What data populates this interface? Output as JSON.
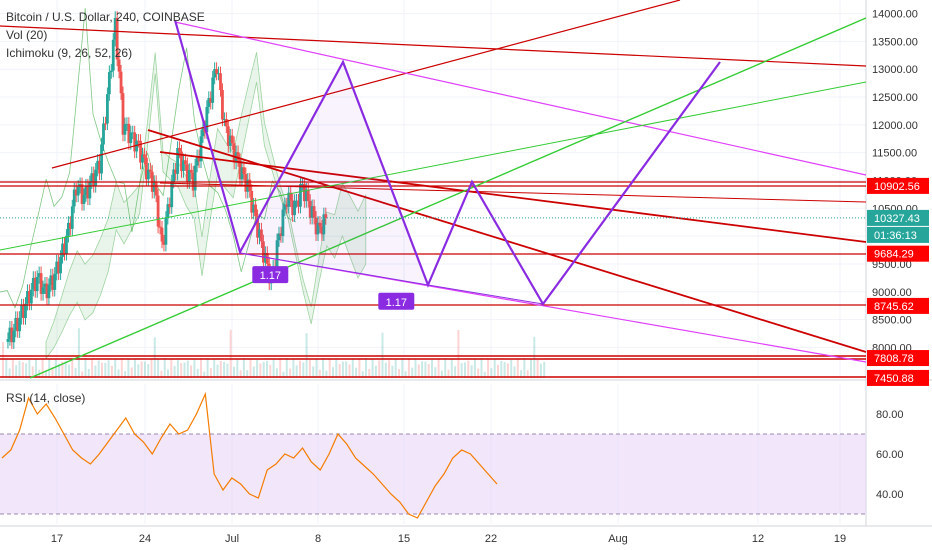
{
  "header": {
    "symbol": "Bitcoin / U.S. Dollar, 240, COINBASE",
    "vol": "Vol (20)",
    "ichimoku": "Ichimoku (9, 26, 52, 26)"
  },
  "rsi_panel": {
    "label": "RSI (14, close)"
  },
  "colors": {
    "up": "#26a69a",
    "down": "#ef5350",
    "pattern": "#8a2be2",
    "red_line": "#cc0000",
    "magenta_line": "#e040fb",
    "green_line": "#33cc33",
    "rsi": "#f57c00",
    "rsi_band": "#e8d5f7",
    "price_tag": "#26a69a",
    "level_tag": "#ff0000"
  },
  "chart_data": [
    {
      "type": "candlestick",
      "title": "Bitcoin / U.S. Dollar, 240, COINBASE",
      "x_ticks": [
        "17",
        "24",
        "Jul",
        "8",
        "15",
        "22",
        "Aug",
        "12",
        "19"
      ],
      "y_ticks": [
        8000,
        8500,
        9000,
        9500,
        10000,
        10500,
        11000,
        11500,
        12000,
        12500,
        13000,
        13500,
        14000
      ],
      "ylim": [
        7450,
        14100
      ],
      "grid": true,
      "ohlc_close_path": [
        {
          "d": 0,
          "c": 8100
        },
        {
          "d": 1,
          "c": 8300
        },
        {
          "d": 2,
          "c": 8600
        },
        {
          "d": 3,
          "c": 8950
        },
        {
          "d": 4,
          "c": 9250
        },
        {
          "d": 5,
          "c": 9000
        },
        {
          "d": 6,
          "c": 9200
        },
        {
          "d": 7,
          "c": 9600
        },
        {
          "d": 8,
          "c": 10100
        },
        {
          "d": 9,
          "c": 10900
        },
        {
          "d": 10,
          "c": 10700
        },
        {
          "d": 11,
          "c": 11000
        },
        {
          "d": 12,
          "c": 11300
        },
        {
          "d": 13,
          "c": 12500
        },
        {
          "d": 14,
          "c": 13800
        },
        {
          "d": 15,
          "c": 12000
        },
        {
          "d": 16,
          "c": 11800
        },
        {
          "d": 17,
          "c": 11600
        },
        {
          "d": 18,
          "c": 11200
        },
        {
          "d": 19,
          "c": 10900
        },
        {
          "d": 20,
          "c": 9800
        },
        {
          "d": 21,
          "c": 10700
        },
        {
          "d": 22,
          "c": 11500
        },
        {
          "d": 23,
          "c": 11200
        },
        {
          "d": 24,
          "c": 11000
        },
        {
          "d": 25,
          "c": 11700
        },
        {
          "d": 26,
          "c": 12400
        },
        {
          "d": 27,
          "c": 13100
        },
        {
          "d": 28,
          "c": 12000
        },
        {
          "d": 29,
          "c": 11600
        },
        {
          "d": 30,
          "c": 11200
        },
        {
          "d": 31,
          "c": 10900
        },
        {
          "d": 32,
          "c": 10300
        },
        {
          "d": 33,
          "c": 9700
        },
        {
          "d": 34,
          "c": 9200
        },
        {
          "d": 35,
          "c": 10000
        },
        {
          "d": 36,
          "c": 10700
        },
        {
          "d": 37,
          "c": 10500
        },
        {
          "d": 38,
          "c": 10900
        },
        {
          "d": 39,
          "c": 10500
        },
        {
          "d": 40,
          "c": 10100
        },
        {
          "d": 41,
          "c": 10300
        }
      ],
      "price_tags": [
        {
          "label": "10902.56",
          "value": 10902.56,
          "kind": "level"
        },
        {
          "label": "10327.43",
          "value": 10327.43,
          "kind": "price"
        },
        {
          "label": "01:36:13",
          "value": 10180,
          "kind": "countdown"
        },
        {
          "label": "9684.29",
          "value": 9684.29,
          "kind": "level"
        },
        {
          "label": "8745.62",
          "value": 8745.62,
          "kind": "level"
        },
        {
          "label": "7808.78",
          "value": 7808.78,
          "kind": "level"
        },
        {
          "label": "7450.88",
          "value": 7450.88,
          "kind": "level"
        }
      ],
      "pattern_labels": [
        {
          "label": "1.17",
          "d": 28.5,
          "v": 9300
        },
        {
          "label": "1.17",
          "d": 38.5,
          "v": 8820
        }
      ]
    },
    {
      "type": "line",
      "title": "RSI (14, close)",
      "y_ticks": [
        40.0,
        60.0,
        80.0
      ],
      "ylim": [
        25,
        95
      ],
      "band": [
        30,
        70
      ],
      "values": [
        58,
        62,
        72,
        88,
        80,
        85,
        78,
        70,
        62,
        58,
        55,
        60,
        66,
        72,
        78,
        70,
        66,
        60,
        68,
        75,
        70,
        72,
        80,
        90,
        50,
        42,
        48,
        45,
        40,
        38,
        52,
        55,
        60,
        58,
        63,
        56,
        52,
        60,
        70,
        65,
        58,
        54,
        50,
        45,
        40,
        36,
        30,
        28,
        36,
        44,
        50,
        58,
        62,
        60,
        55,
        50,
        45
      ]
    }
  ]
}
